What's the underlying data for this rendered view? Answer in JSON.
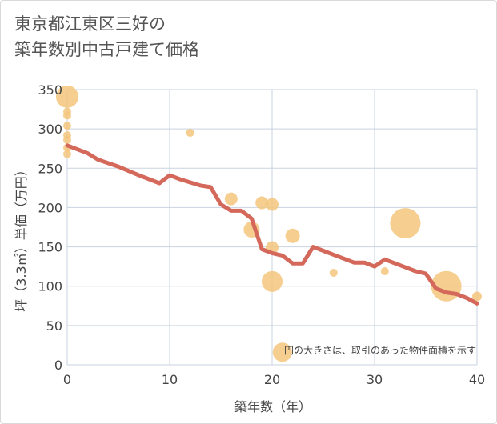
{
  "title_line1": "東京都江東区三好の",
  "title_line2": "築年数別中古戸建て価格",
  "colors": {
    "bubble": "#f3c67c",
    "line": "#d4695b",
    "grid": "#c9d3df",
    "plot_bg": "#ffffff"
  },
  "chart_data": {
    "type": "scatter",
    "xlabel": "築年数（年）",
    "ylabel": "坪（3.3㎡）単価（万円）",
    "xlim": [
      0,
      40
    ],
    "ylim": [
      0,
      350
    ],
    "x_ticks": [
      0,
      10,
      20,
      30,
      40
    ],
    "y_ticks": [
      0,
      50,
      100,
      150,
      200,
      250,
      300,
      350
    ],
    "annotation": "円の大きさは、取引のあった物件面積を示す",
    "bubbles": [
      {
        "x": 0,
        "y": 341,
        "r": 14
      },
      {
        "x": 0,
        "y": 322,
        "r": 5
      },
      {
        "x": 0,
        "y": 317,
        "r": 5
      },
      {
        "x": 0,
        "y": 304,
        "r": 5
      },
      {
        "x": 0,
        "y": 292,
        "r": 5
      },
      {
        "x": 0,
        "y": 286,
        "r": 5
      },
      {
        "x": 0,
        "y": 276,
        "r": 5
      },
      {
        "x": 0,
        "y": 268,
        "r": 5
      },
      {
        "x": 12,
        "y": 295,
        "r": 5
      },
      {
        "x": 16,
        "y": 211,
        "r": 8
      },
      {
        "x": 19,
        "y": 206,
        "r": 8
      },
      {
        "x": 20,
        "y": 204,
        "r": 8
      },
      {
        "x": 18,
        "y": 172,
        "r": 10
      },
      {
        "x": 20,
        "y": 149,
        "r": 8
      },
      {
        "x": 22,
        "y": 164,
        "r": 9
      },
      {
        "x": 20,
        "y": 106,
        "r": 13
      },
      {
        "x": 21,
        "y": 16,
        "r": 12
      },
      {
        "x": 26,
        "y": 117,
        "r": 5
      },
      {
        "x": 31,
        "y": 119,
        "r": 5
      },
      {
        "x": 33,
        "y": 180,
        "r": 19
      },
      {
        "x": 37,
        "y": 100,
        "r": 19
      },
      {
        "x": 40,
        "y": 87,
        "r": 6
      }
    ],
    "series": [
      {
        "x": [
          0,
          2,
          3,
          5,
          7,
          9,
          10,
          11,
          13,
          14,
          15,
          16,
          17,
          18,
          19,
          20,
          21,
          22,
          23,
          24,
          25,
          26,
          27,
          28,
          29,
          30,
          31,
          32,
          33,
          34,
          35,
          36,
          37,
          38,
          39,
          40
        ],
        "y": [
          279,
          269,
          261,
          252,
          241,
          231,
          241,
          236,
          228,
          226,
          204,
          196,
          196,
          186,
          147,
          142,
          139,
          129,
          129,
          150,
          145,
          140,
          135,
          130,
          130,
          125,
          134,
          129,
          124,
          119,
          116,
          97,
          92,
          90,
          85,
          78
        ]
      }
    ]
  }
}
